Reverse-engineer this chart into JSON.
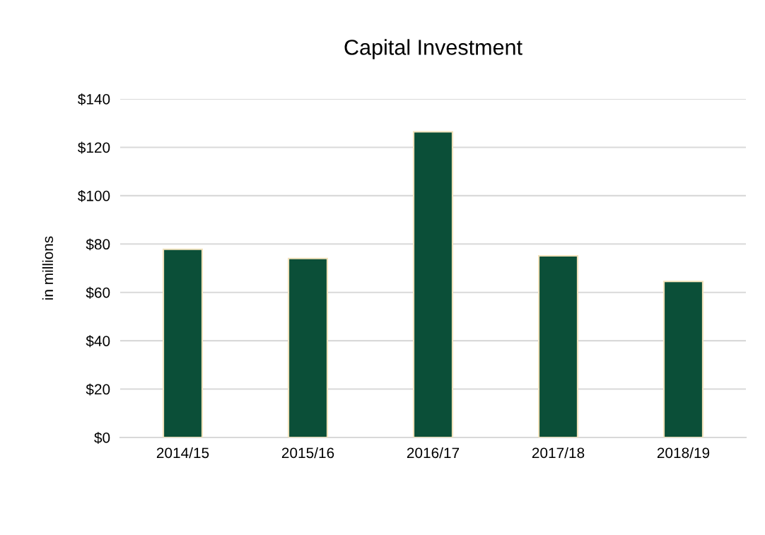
{
  "chart_data": {
    "type": "bar",
    "title": "Capital Investment",
    "ylabel": "in millions",
    "categories": [
      "2014/15",
      "2015/16",
      "2016/17",
      "2017/18",
      "2018/19"
    ],
    "values": [
      77.8,
      74.0,
      126.4,
      75.1,
      64.5
    ],
    "color": "#0b4f38",
    "ylim": [
      0,
      140
    ],
    "yticks": [
      {
        "value": 0,
        "label": "$0"
      },
      {
        "value": 20,
        "label": "$20"
      },
      {
        "value": 40,
        "label": "$40"
      },
      {
        "value": 60,
        "label": "$60"
      },
      {
        "value": 80,
        "label": "$80"
      },
      {
        "value": 100,
        "label": "$100"
      },
      {
        "value": 120,
        "label": "$120"
      },
      {
        "value": 140,
        "label": "$140"
      }
    ],
    "grid": "y",
    "legend": false
  }
}
